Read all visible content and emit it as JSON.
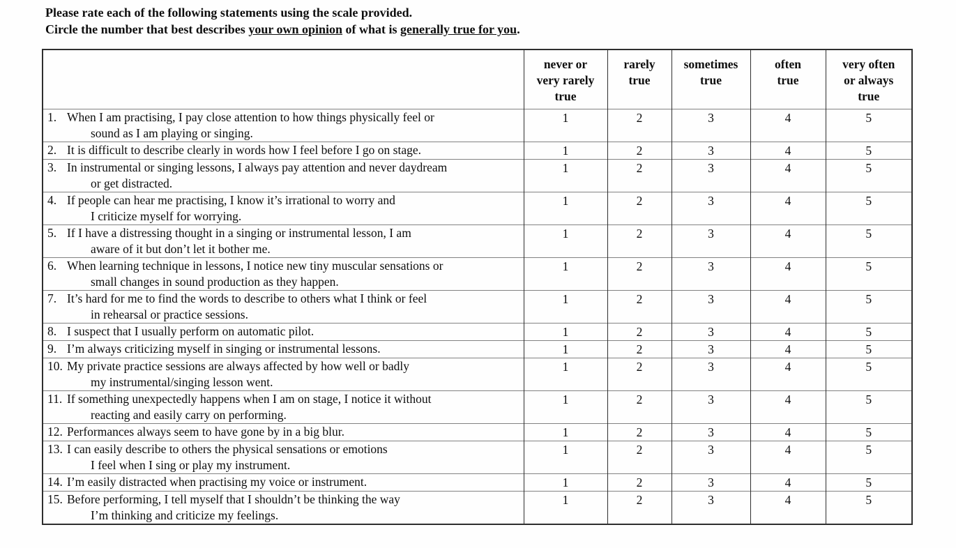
{
  "colors": {
    "text": "#0e0e0e",
    "outer_border": "#2e2e2e",
    "row_divider": "#828282",
    "background": "#fefefe"
  },
  "instructions": {
    "line1": "Please rate each of the following statements using the scale provided.",
    "line2_prefix": "Circle the number that best describes ",
    "line2_underline1": "your own opinion",
    "line2_mid": " of what is ",
    "line2_underline2": "generally true for you",
    "line2_suffix": "."
  },
  "table": {
    "statement_header": "",
    "columns": [
      "never or\nvery rarely\ntrue",
      "rarely\ntrue",
      "sometimes\ntrue",
      "often\ntrue",
      "very often\nor always\ntrue"
    ],
    "scale_values": [
      "1",
      "2",
      "3",
      "4",
      "5"
    ],
    "rows": [
      {
        "num": "1.",
        "lines": [
          "When I am practising, I pay close attention to how things physically feel or",
          "sound as I am playing or singing."
        ]
      },
      {
        "num": "2.",
        "lines": [
          "It is difficult to describe clearly in words how I feel before I go on stage."
        ]
      },
      {
        "num": "3.",
        "lines": [
          "In instrumental or singing lessons, I always pay attention and never daydream",
          "or get distracted."
        ]
      },
      {
        "num": "4.",
        "lines": [
          "If people can hear me practising, I know it’s irrational to worry and",
          "I criticize myself for worrying."
        ]
      },
      {
        "num": "5.",
        "lines": [
          "If I have a distressing thought in a singing or instrumental lesson, I am",
          "aware of it but don’t let it bother me."
        ]
      },
      {
        "num": "6.",
        "lines": [
          "When learning technique in lessons, I notice new tiny muscular sensations or",
          "small changes in sound production as they happen."
        ]
      },
      {
        "num": "7.",
        "lines": [
          "It’s hard for me to find the words to describe to others what I think or feel",
          "in rehearsal or practice sessions."
        ]
      },
      {
        "num": "8.",
        "lines": [
          "I suspect that I usually perform on automatic pilot."
        ]
      },
      {
        "num": "9.",
        "lines": [
          "I’m always criticizing myself in singing or instrumental lessons."
        ]
      },
      {
        "num": "10.",
        "lines": [
          "My private practice sessions are always affected by how well or badly",
          "my instrumental/singing lesson went."
        ]
      },
      {
        "num": "11.",
        "lines": [
          "If something unexpectedly happens when I am on stage, I notice it without",
          "reacting and easily carry on performing."
        ]
      },
      {
        "num": "12.",
        "lines": [
          "Performances always seem to have gone by in a big blur."
        ]
      },
      {
        "num": "13.",
        "lines": [
          "I can easily describe to others the physical sensations or emotions",
          "I feel when I sing or play my instrument."
        ]
      },
      {
        "num": "14.",
        "lines": [
          "I’m easily distracted when practising my voice or instrument."
        ]
      },
      {
        "num": "15.",
        "lines": [
          "Before performing, I tell myself that I shouldn’t be thinking the way",
          "I’m thinking and criticize my feelings."
        ]
      }
    ]
  }
}
